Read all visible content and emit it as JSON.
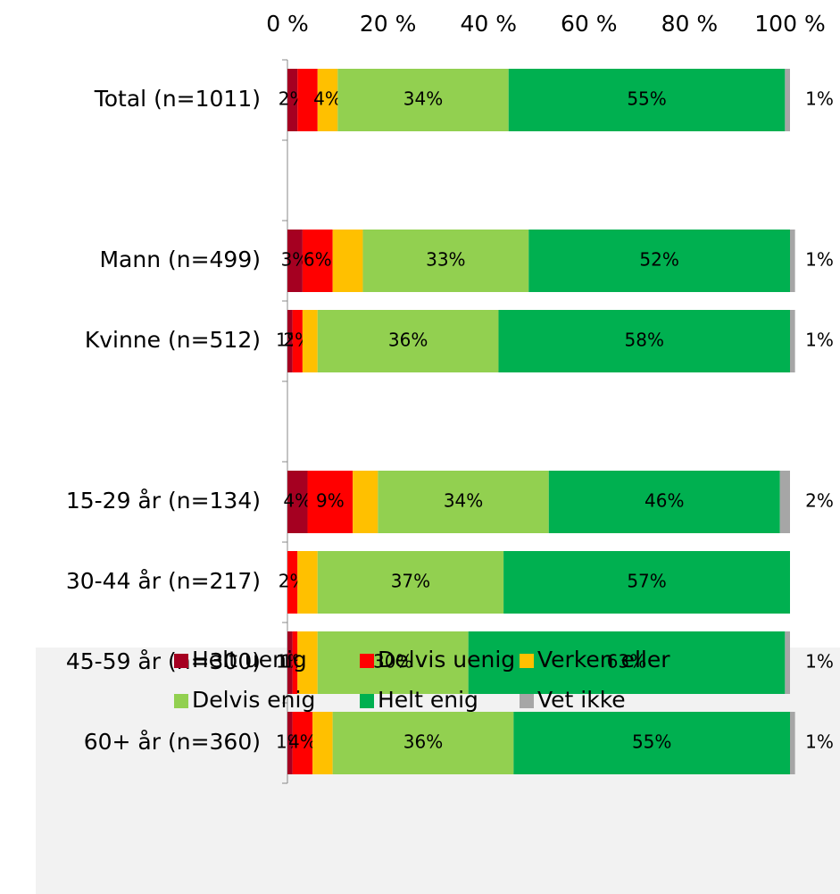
{
  "chart_data": {
    "type": "stacked-bar-horizontal",
    "categories": [
      "Total (n=1011)",
      null,
      "Mann (n=499)",
      "Kvinne (n=512)",
      null,
      "15-29 år (n=134)",
      "30-44 år (n=217)",
      "45-59 år (n=300)",
      "60+ år (n=360)"
    ],
    "series": [
      {
        "name": "Helt uenig",
        "color": "#a50021",
        "values": [
          2,
          null,
          3,
          1,
          null,
          4,
          0,
          1,
          1
        ],
        "value_labels": [
          "2%",
          null,
          "3%",
          "1%",
          null,
          "4%",
          null,
          "1%",
          "1%"
        ]
      },
      {
        "name": "Delvis uenig",
        "color": "#ff0000",
        "values": [
          4,
          null,
          6,
          2,
          null,
          9,
          2,
          1,
          4
        ],
        "value_labels": [
          null,
          null,
          "6%",
          "2%",
          null,
          "9%",
          "2%",
          "1%",
          "4%"
        ]
      },
      {
        "name": "Verken eller",
        "color": "#ffc000",
        "values": [
          4,
          null,
          6,
          3,
          null,
          5,
          4,
          4,
          4
        ],
        "value_labels": [
          "4%",
          null,
          null,
          null,
          null,
          null,
          null,
          null,
          null
        ]
      },
      {
        "name": "Delvis enig",
        "color": "#92d050",
        "values": [
          34,
          null,
          33,
          36,
          null,
          34,
          37,
          30,
          36
        ],
        "value_labels": [
          "34%",
          null,
          "33%",
          "36%",
          null,
          "34%",
          "37%",
          "30%",
          "36%"
        ]
      },
      {
        "name": "Helt enig",
        "color": "#00b050",
        "values": [
          55,
          null,
          52,
          58,
          null,
          46,
          57,
          63,
          55
        ],
        "value_labels": [
          "55%",
          null,
          "52%",
          "58%",
          null,
          "46%",
          "57%",
          "63%",
          "55%"
        ]
      },
      {
        "name": "Vet ikke",
        "color": "#a6a6a6",
        "values": [
          1,
          null,
          1,
          1,
          null,
          2,
          0,
          1,
          1
        ],
        "value_labels": [
          "1%",
          null,
          "1%",
          "1%",
          null,
          "2%",
          null,
          "1%",
          "1%"
        ]
      }
    ],
    "xlim": [
      0,
      100
    ],
    "xticks": [
      {
        "value": 0,
        "label": "0 %"
      },
      {
        "value": 20,
        "label": "20 %"
      },
      {
        "value": 40,
        "label": "40 %"
      },
      {
        "value": 60,
        "label": "60 %"
      },
      {
        "value": 80,
        "label": "80 %"
      },
      {
        "value": 100,
        "label": "100 %"
      }
    ],
    "legend": "bottom"
  }
}
